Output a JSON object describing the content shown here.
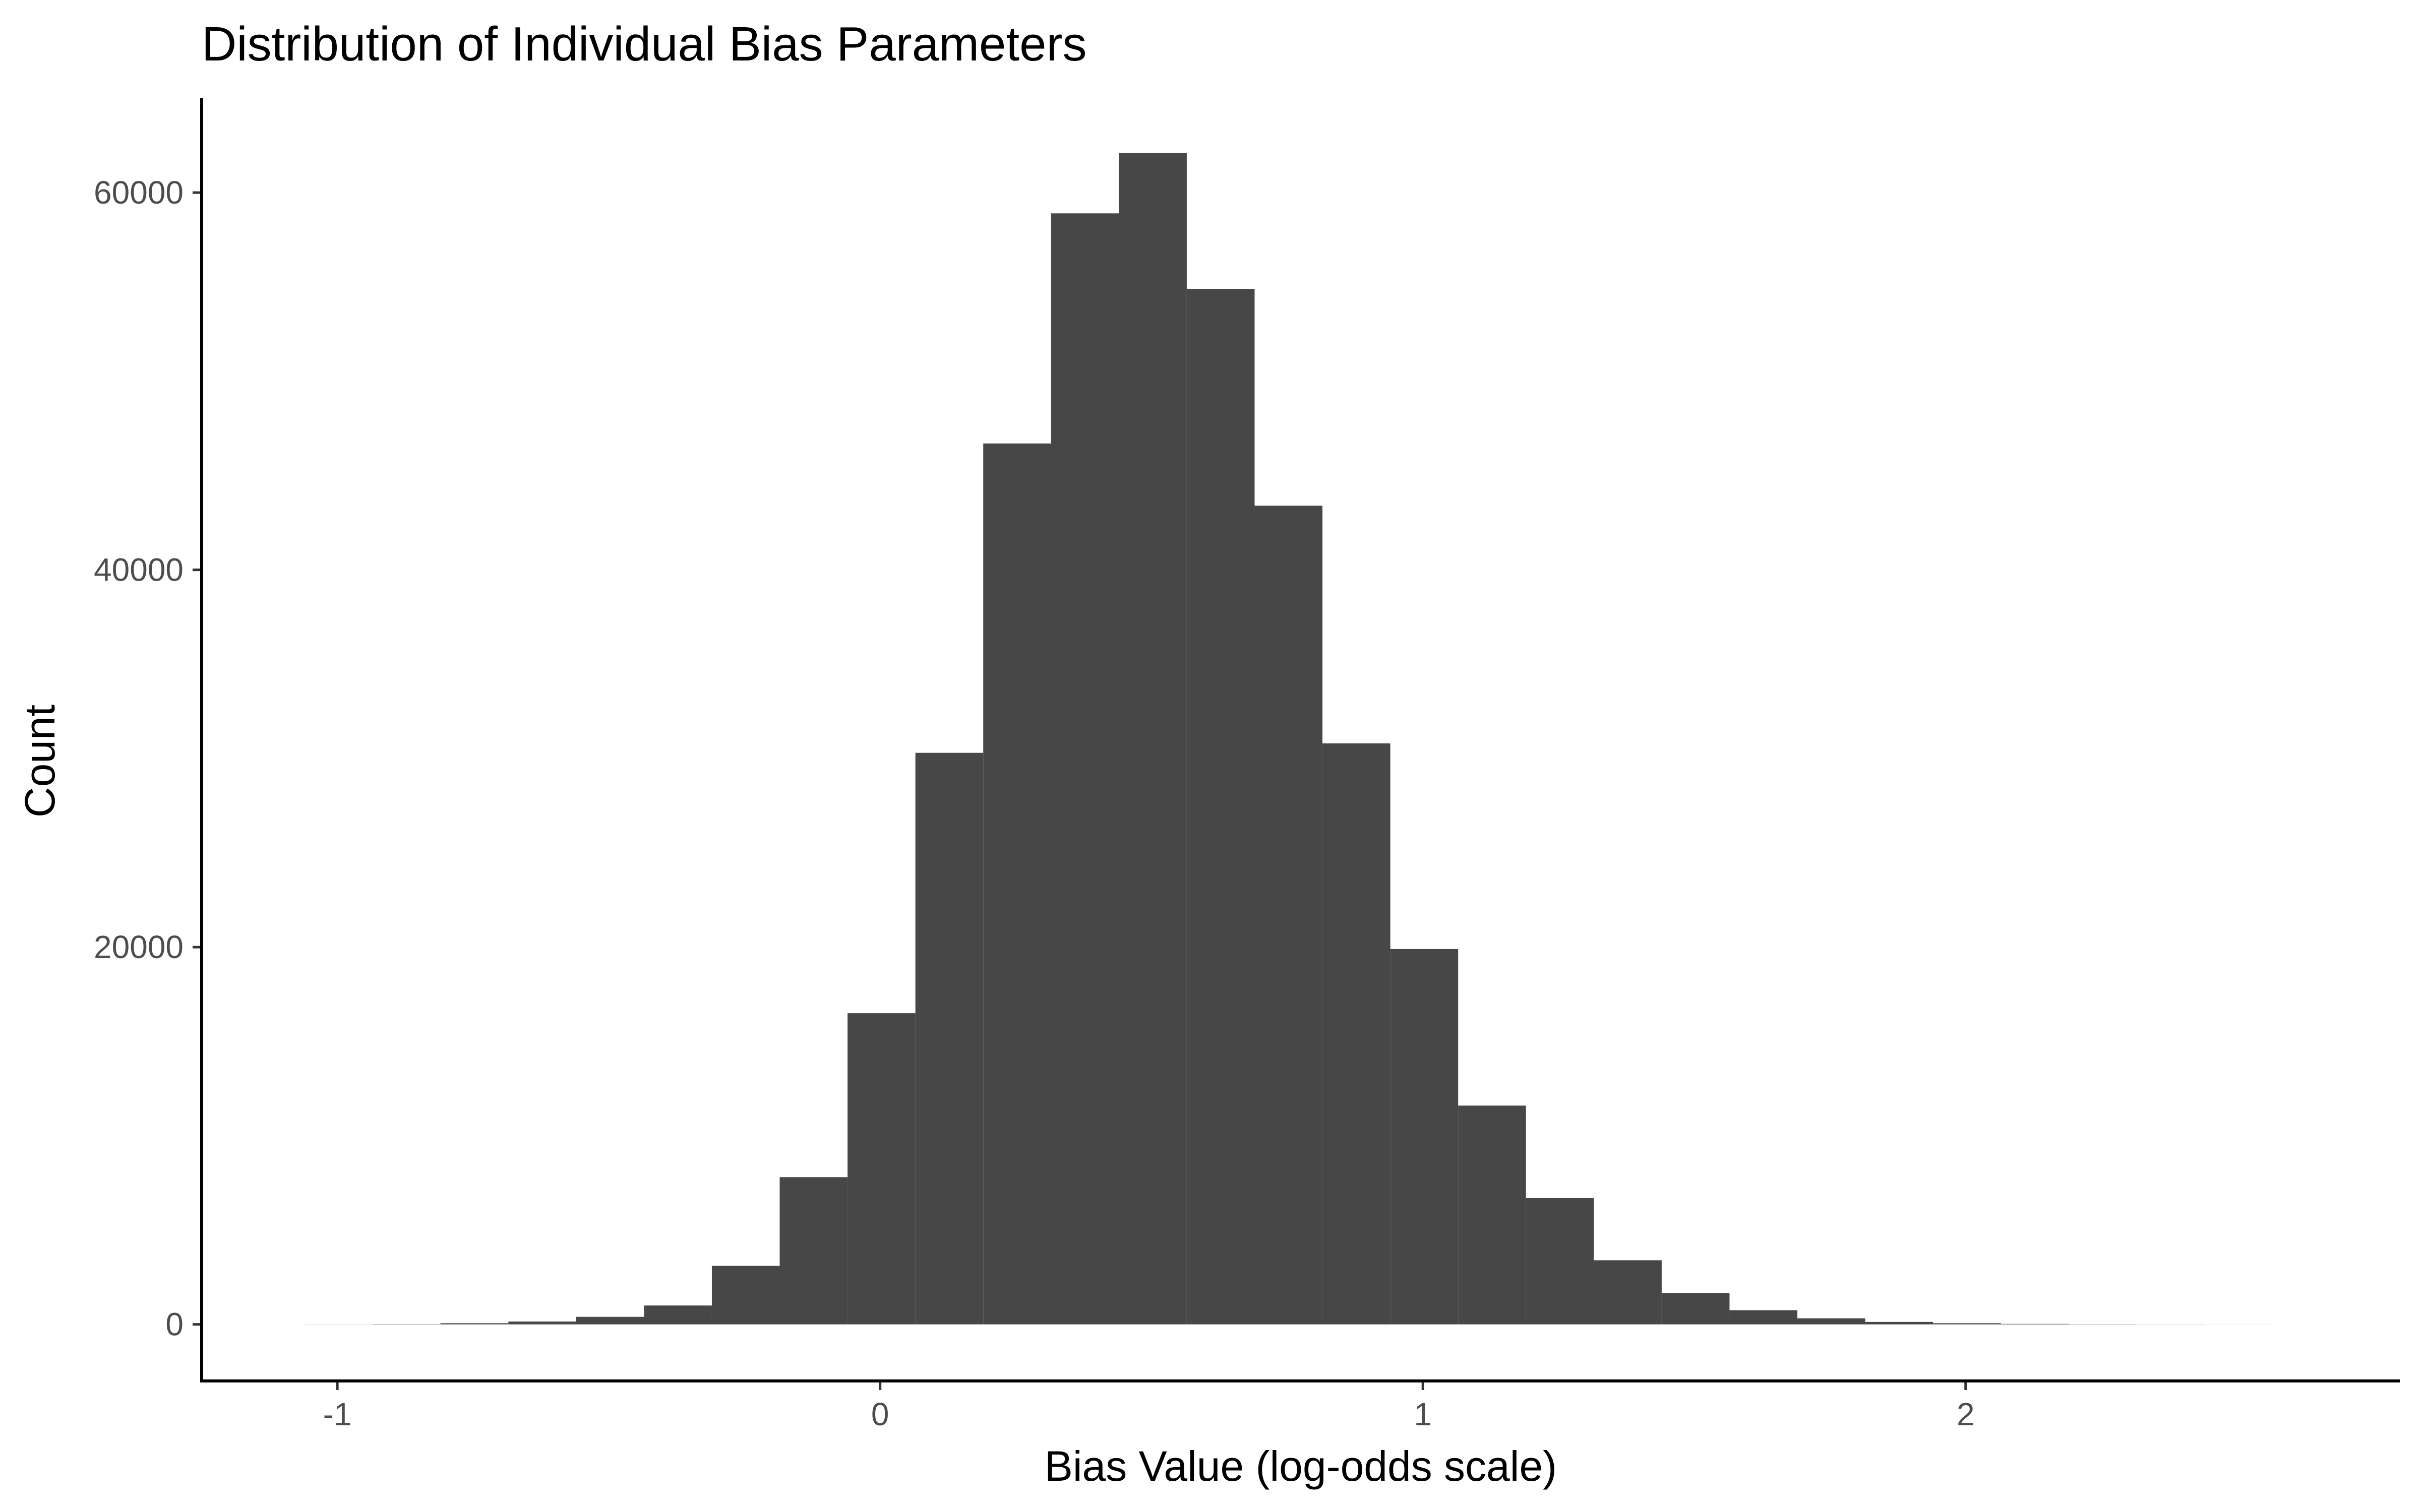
{
  "chart_data": {
    "type": "bar",
    "title": "Distribution of Individual Bias Parameters",
    "xlabel": "Bias Value (log-odds scale)",
    "ylabel": "Count",
    "xlim": [
      -1.25,
      2.8
    ],
    "ylim": [
      -3000,
      65000
    ],
    "x_ticks": [
      {
        "value": -1,
        "label": "-1"
      },
      {
        "value": 0,
        "label": "0"
      },
      {
        "value": 1,
        "label": "1"
      },
      {
        "value": 2,
        "label": "2"
      }
    ],
    "y_ticks": [
      {
        "value": 0,
        "label": "0"
      },
      {
        "value": 20000,
        "label": "20000"
      },
      {
        "value": 40000,
        "label": "40000"
      },
      {
        "value": 60000,
        "label": "60000"
      }
    ],
    "bin_width": 0.125,
    "bins": [
      {
        "x0": -1.06,
        "x1": -0.935,
        "count": 5
      },
      {
        "x0": -0.935,
        "x1": -0.81,
        "count": 15
      },
      {
        "x0": -0.81,
        "x1": -0.685,
        "count": 60
      },
      {
        "x0": -0.685,
        "x1": -0.56,
        "count": 150
      },
      {
        "x0": -0.56,
        "x1": -0.435,
        "count": 400
      },
      {
        "x0": -0.435,
        "x1": -0.31,
        "count": 1000
      },
      {
        "x0": -0.31,
        "x1": -0.185,
        "count": 3100
      },
      {
        "x0": -0.185,
        "x1": -0.06,
        "count": 7800
      },
      {
        "x0": -0.06,
        "x1": 0.065,
        "count": 16500
      },
      {
        "x0": 0.065,
        "x1": 0.19,
        "count": 30300
      },
      {
        "x0": 0.19,
        "x1": 0.315,
        "count": 46700
      },
      {
        "x0": 0.315,
        "x1": 0.44,
        "count": 58900
      },
      {
        "x0": 0.44,
        "x1": 0.565,
        "count": 62100
      },
      {
        "x0": 0.565,
        "x1": 0.69,
        "count": 54900
      },
      {
        "x0": 0.69,
        "x1": 0.815,
        "count": 43400
      },
      {
        "x0": 0.815,
        "x1": 0.94,
        "count": 30800
      },
      {
        "x0": 0.94,
        "x1": 1.065,
        "count": 19900
      },
      {
        "x0": 1.065,
        "x1": 1.19,
        "count": 11600
      },
      {
        "x0": 1.19,
        "x1": 1.315,
        "count": 6700
      },
      {
        "x0": 1.315,
        "x1": 1.44,
        "count": 3400
      },
      {
        "x0": 1.44,
        "x1": 1.565,
        "count": 1650
      },
      {
        "x0": 1.565,
        "x1": 1.69,
        "count": 750
      },
      {
        "x0": 1.69,
        "x1": 1.815,
        "count": 320
      },
      {
        "x0": 1.815,
        "x1": 1.94,
        "count": 130
      },
      {
        "x0": 1.94,
        "x1": 2.065,
        "count": 60
      },
      {
        "x0": 2.065,
        "x1": 2.19,
        "count": 25
      },
      {
        "x0": 2.19,
        "x1": 2.315,
        "count": 10
      },
      {
        "x0": 2.315,
        "x1": 2.44,
        "count": 5
      },
      {
        "x0": 2.44,
        "x1": 2.565,
        "count": 2
      }
    ],
    "bar_color": "#474747",
    "grid": false,
    "legend": "none"
  }
}
